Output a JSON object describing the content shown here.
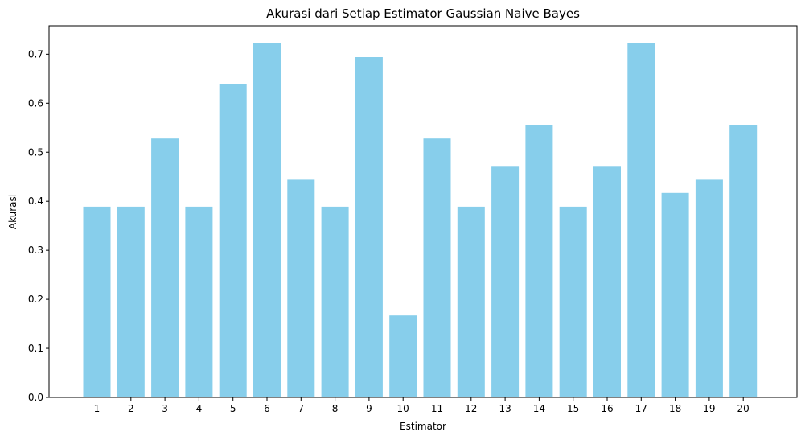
{
  "chart_data": {
    "type": "bar",
    "title": "Akurasi dari Setiap Estimator Gaussian Naive Bayes",
    "xlabel": "Estimator",
    "ylabel": "Akurasi",
    "categories": [
      "1",
      "2",
      "3",
      "4",
      "5",
      "6",
      "7",
      "8",
      "9",
      "10",
      "11",
      "12",
      "13",
      "14",
      "15",
      "16",
      "17",
      "18",
      "19",
      "20"
    ],
    "values": [
      0.389,
      0.389,
      0.528,
      0.389,
      0.639,
      0.722,
      0.444,
      0.389,
      0.694,
      0.167,
      0.528,
      0.389,
      0.472,
      0.556,
      0.389,
      0.472,
      0.722,
      0.417,
      0.444,
      0.556
    ],
    "yticks": [
      "0.0",
      "0.1",
      "0.2",
      "0.3",
      "0.4",
      "0.5",
      "0.6",
      "0.7"
    ],
    "ylim": [
      0,
      0.758
    ],
    "bar_color": "#87ceeb",
    "grid": false
  }
}
